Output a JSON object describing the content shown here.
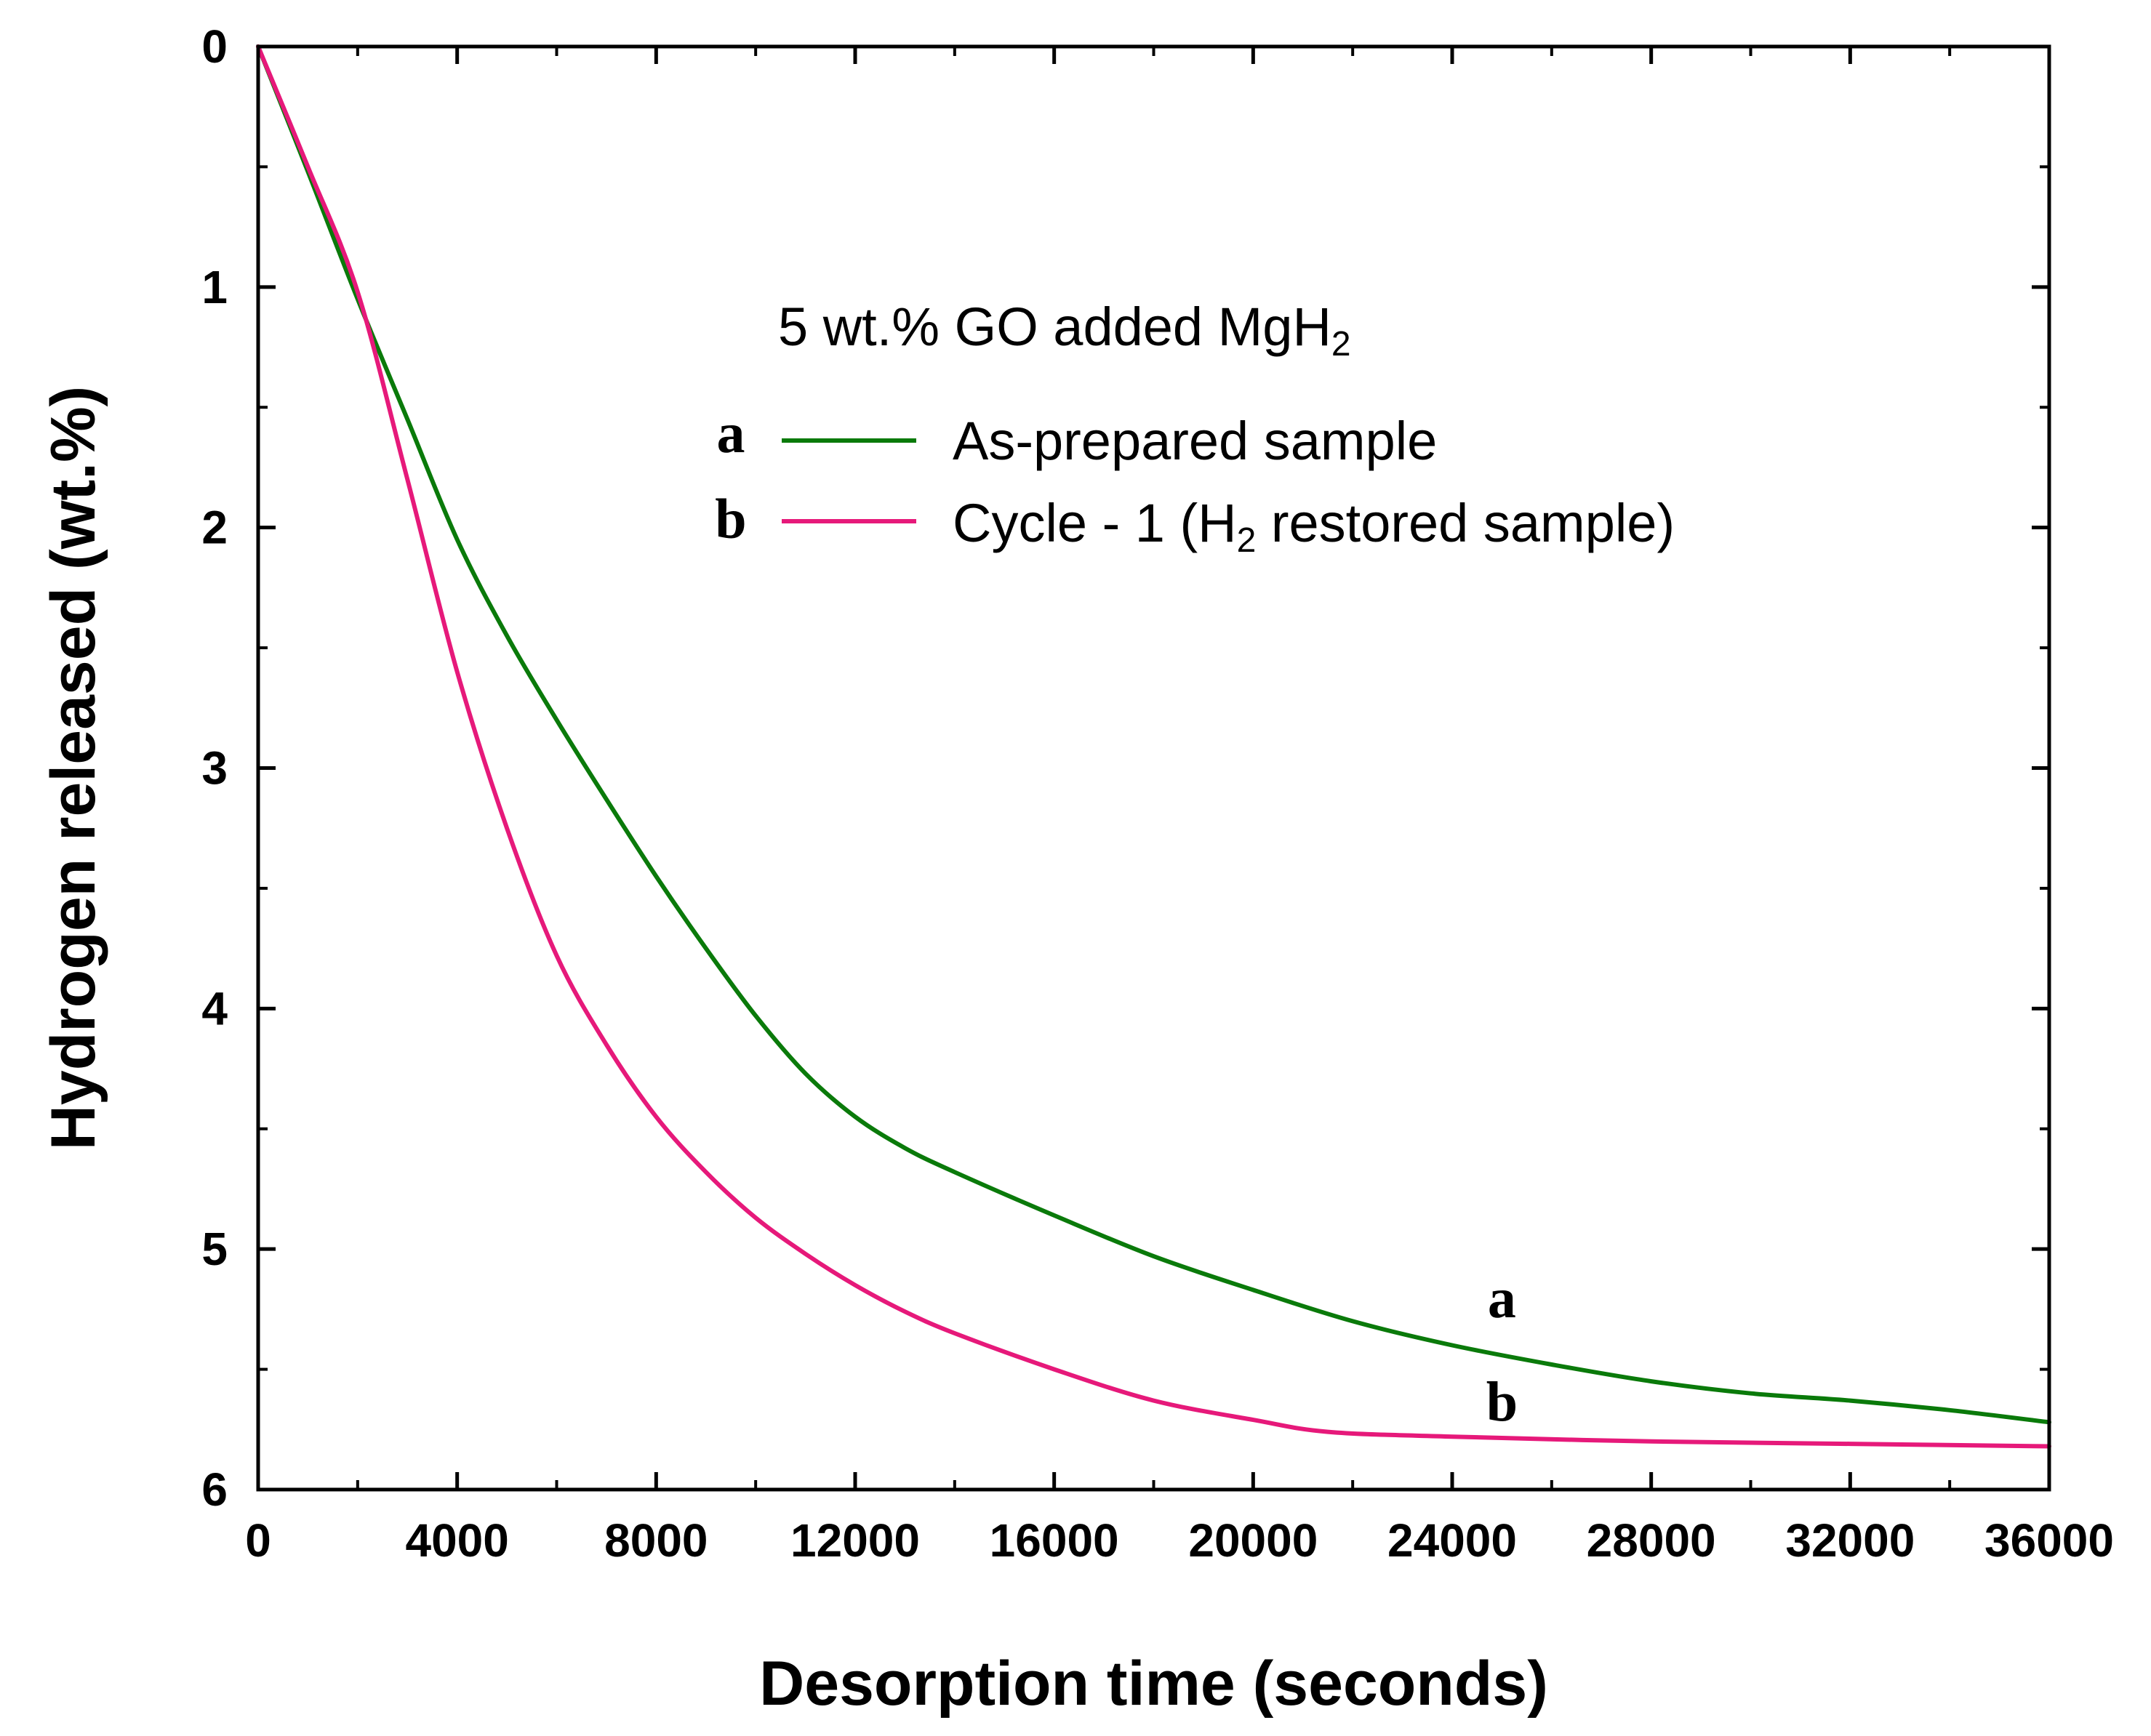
{
  "chart_data": {
    "type": "line",
    "title": "",
    "xlabel": "Desorption time (seconds)",
    "ylabel": "Hydrogen released (wt.%)",
    "xlim": [
      0,
      36000
    ],
    "ylim": [
      0,
      6
    ],
    "y_inverted": true,
    "x_ticks": [
      "0",
      "4000",
      "8000",
      "12000",
      "16000",
      "20000",
      "24000",
      "28000",
      "32000",
      "36000"
    ],
    "x_tick_values": [
      0,
      4000,
      8000,
      12000,
      16000,
      20000,
      24000,
      28000,
      32000,
      36000
    ],
    "y_ticks": [
      "0",
      "1",
      "2",
      "3",
      "4",
      "5",
      "6"
    ],
    "y_tick_values": [
      0,
      1,
      2,
      3,
      4,
      5,
      6
    ],
    "grid": false,
    "legend_placement": "upper-center",
    "legend_heading": {
      "prefix": "5 wt.% GO added MgH",
      "subscript": "2"
    },
    "series": [
      {
        "key": "a",
        "name": "As-prepared sample",
        "color": "#0a7a0a",
        "end_label": "a",
        "x": [
          0,
          1000,
          2000,
          3000,
          4000,
          5000,
          6000,
          7000,
          8000,
          9000,
          10000,
          11000,
          12000,
          13000,
          14000,
          16000,
          18000,
          20000,
          22000,
          24000,
          26000,
          28000,
          30000,
          32000,
          34000,
          36000
        ],
        "y": [
          0,
          0.52,
          1.05,
          1.55,
          2.05,
          2.45,
          2.8,
          3.13,
          3.45,
          3.75,
          4.03,
          4.27,
          4.45,
          4.58,
          4.68,
          4.86,
          5.03,
          5.17,
          5.3,
          5.4,
          5.48,
          5.55,
          5.6,
          5.63,
          5.67,
          5.72
        ]
      },
      {
        "key": "b",
        "name": "Cycle - 1 (H2 restored sample)",
        "name_parts": {
          "before": "Cycle - 1 (H",
          "sub": "2",
          "after": " restored sample)"
        },
        "color": "#e6197a",
        "end_label": "b",
        "x": [
          0,
          1000,
          2000,
          3000,
          4000,
          5000,
          6000,
          7000,
          8000,
          9000,
          10000,
          11000,
          12000,
          13000,
          14000,
          16000,
          18000,
          20000,
          21500,
          24000,
          28000,
          32000,
          36000
        ],
        "y": [
          0,
          0.5,
          1.02,
          1.8,
          2.6,
          3.25,
          3.78,
          4.15,
          4.45,
          4.68,
          4.87,
          5.02,
          5.15,
          5.26,
          5.35,
          5.5,
          5.63,
          5.71,
          5.76,
          5.78,
          5.8,
          5.81,
          5.82
        ]
      }
    ]
  }
}
